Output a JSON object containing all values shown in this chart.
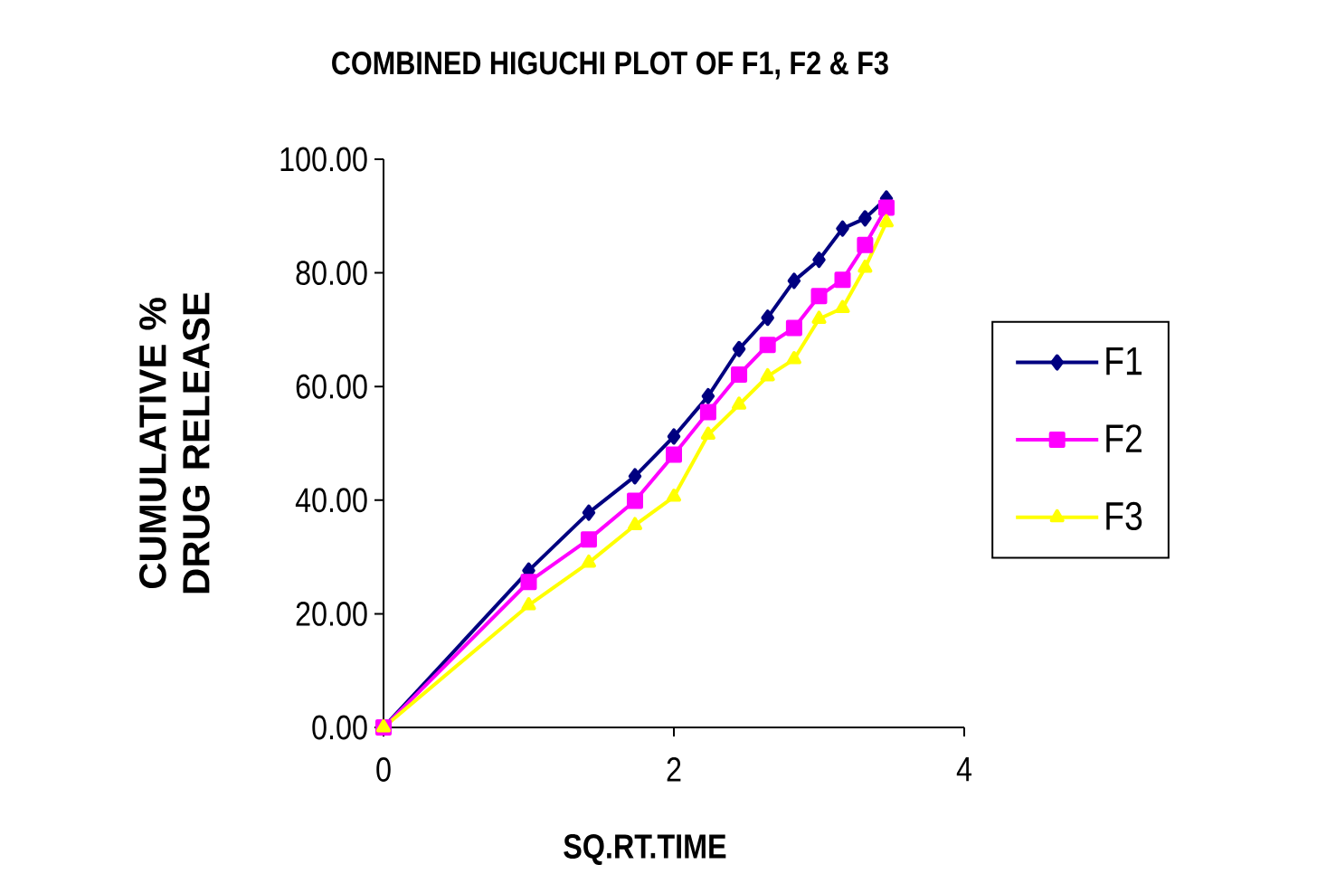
{
  "chart_data": {
    "type": "line",
    "title": "COMBINED HIGUCHI PLOT OF F1, F2 & F3",
    "xlabel": "SQ.RT.TIME",
    "ylabel": "CUMULATIVE % DRUG RELEASE",
    "x": [
      0,
      1,
      1.414,
      1.732,
      2,
      2.236,
      2.449,
      2.646,
      2.828,
      3,
      3.162,
      3.317,
      3.464
    ],
    "series": [
      {
        "name": "F1",
        "color": "#000080",
        "marker": "diamond",
        "values": [
          0,
          27.6,
          37.8,
          44.2,
          51.2,
          58.3,
          66.6,
          72.1,
          78.6,
          82.3,
          87.8,
          89.6,
          93.1
        ]
      },
      {
        "name": "F2",
        "color": "#ff00ff",
        "marker": "square",
        "values": [
          0,
          25.6,
          33.1,
          39.9,
          48.0,
          55.5,
          62.1,
          67.3,
          70.3,
          75.9,
          78.8,
          84.9,
          91.5
        ]
      },
      {
        "name": "F3",
        "color": "#ffff00",
        "marker": "triangle",
        "values": [
          0,
          21.5,
          29.0,
          35.6,
          40.6,
          51.5,
          56.8,
          61.8,
          64.8,
          71.9,
          73.8,
          80.9,
          88.9
        ]
      }
    ],
    "xlim": [
      0,
      4
    ],
    "xticks": [
      0,
      2,
      4
    ],
    "ylim": [
      0,
      100
    ],
    "yticks": [
      {
        "value": 0,
        "label": "0.00"
      },
      {
        "value": 20,
        "label": "20.00"
      },
      {
        "value": 40,
        "label": "40.00"
      },
      {
        "value": 60,
        "label": "60.00"
      },
      {
        "value": 80,
        "label": "80.00"
      },
      {
        "value": 100,
        "label": "100.00"
      }
    ],
    "legend": "right",
    "grid": false,
    "line_style": "solid"
  }
}
